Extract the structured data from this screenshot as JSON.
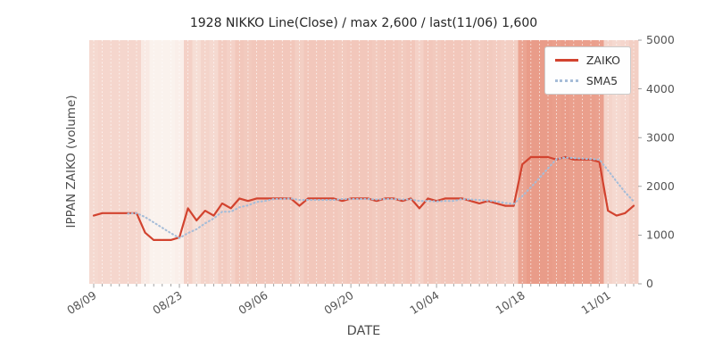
{
  "figure": {
    "title": "1928 NIKKO Line(Close) / max 2,600 / last(11/06) 1,600",
    "xlabel": "DATE",
    "ylabel": "IPPAN ZAIKO (volume)"
  },
  "legend": {
    "items": [
      {
        "name": "ZAIKO",
        "style": "solid"
      },
      {
        "name": "SMA5",
        "style": "dotted"
      }
    ],
    "position": "upper right"
  },
  "colors": {
    "zaiko_line": "#d2432f",
    "sma5_line": "#a6bdd8",
    "band_min": "#faf2ed",
    "band_max": "#e99c89",
    "grid_line": "#ffffff",
    "tick_text": "#555555",
    "axis_label": "#4d4d4d",
    "title_text": "#262626",
    "tick_mark": "#8a8a8a",
    "legend_border": "#cccccc",
    "legend_bg": "#fefefe"
  },
  "chart_data": {
    "type": "line",
    "title": "1928 NIKKO Line(Close) / max 2,600 / last(11/06) 1,600",
    "xlabel": "DATE",
    "ylabel": "IPPAN ZAIKO (volume)",
    "ylim": [
      0,
      5000
    ],
    "y_ticks": [
      0,
      1000,
      2000,
      3000,
      4000,
      5000
    ],
    "x_tick_indices": [
      0,
      10,
      20,
      30,
      40,
      50,
      60
    ],
    "x_tick_labels": [
      "08/09",
      "08/23",
      "09/06",
      "09/20",
      "10/04",
      "10/18",
      "11/01"
    ],
    "grid": "vertical white dashed lines per date",
    "background": "per-date vertical heat bands shaded by ZAIKO value (light cream = low, dark salmon = high)",
    "legend_position": "upper right",
    "max": 2600,
    "last": {
      "date": "11/06",
      "value": 1600
    },
    "dates": [
      "08/09",
      "08/10",
      "08/11",
      "08/14",
      "08/15",
      "08/16",
      "08/17",
      "08/18",
      "08/21",
      "08/22",
      "08/23",
      "08/24",
      "08/25",
      "08/28",
      "08/29",
      "08/30",
      "08/31",
      "09/01",
      "09/04",
      "09/05",
      "09/06",
      "09/07",
      "09/08",
      "09/11",
      "09/12",
      "09/13",
      "09/14",
      "09/15",
      "09/18",
      "09/19",
      "09/20",
      "09/21",
      "09/22",
      "09/25",
      "09/26",
      "09/27",
      "09/28",
      "09/29",
      "10/02",
      "10/03",
      "10/04",
      "10/05",
      "10/06",
      "10/09",
      "10/10",
      "10/11",
      "10/12",
      "10/13",
      "10/16",
      "10/17",
      "10/18",
      "10/19",
      "10/20",
      "10/23",
      "10/24",
      "10/25",
      "10/26",
      "10/27",
      "10/30",
      "10/31",
      "11/01",
      "11/02",
      "11/03",
      "11/06"
    ],
    "series": [
      {
        "name": "ZAIKO",
        "style": "solid",
        "values": [
          1400,
          1450,
          1450,
          1450,
          1450,
          1450,
          1050,
          900,
          900,
          900,
          950,
          1550,
          1300,
          1500,
          1400,
          1650,
          1550,
          1750,
          1700,
          1750,
          1750,
          1750,
          1750,
          1750,
          1600,
          1750,
          1750,
          1750,
          1750,
          1700,
          1750,
          1750,
          1750,
          1700,
          1750,
          1750,
          1700,
          1750,
          1550,
          1750,
          1700,
          1750,
          1750,
          1750,
          1700,
          1650,
          1700,
          1650,
          1600,
          1600,
          2450,
          2600,
          2600,
          2600,
          2550,
          2600,
          2550,
          2550,
          2550,
          2500,
          1500,
          1400,
          1450,
          1600
        ]
      },
      {
        "name": "SMA5",
        "style": "dotted",
        "derived_from": "ZAIKO",
        "window": 5
      }
    ]
  }
}
